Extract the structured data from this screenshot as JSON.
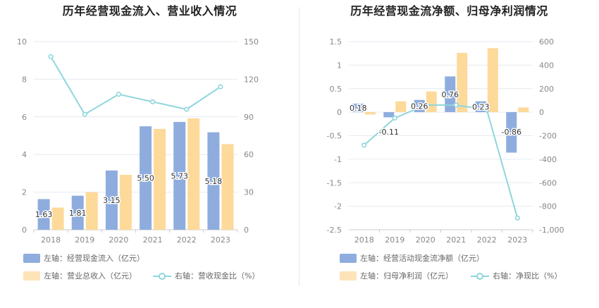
{
  "colors": {
    "bar1": "#8eadde",
    "bar2": "#fdd99a",
    "line": "#8ed6dc",
    "grid": "#e6e9f0",
    "axis_text": "#888888",
    "label_text": "#333333"
  },
  "left": {
    "title": "历年经营现金流入、营业收入情况",
    "legend": {
      "bar1": "左轴：经营现金流入（亿元）",
      "bar2": "左轴：营业总收入（亿元）",
      "line": "右轴：营收现金比（%）"
    }
  },
  "right": {
    "title": "历年经营现金流净额、归母净利润情况",
    "legend": {
      "bar1": "左轴：经营活动现金流净额（亿元）",
      "bar2": "左轴：归母净利润（亿元）",
      "line": "右轴：净现比（%）"
    }
  },
  "chart_data": [
    {
      "type": "bar",
      "title": "历年经营现金流入、营业收入情况",
      "categories": [
        "2018",
        "2019",
        "2020",
        "2021",
        "2022",
        "2023"
      ],
      "series": [
        {
          "name": "左轴：经营现金流入（亿元）",
          "axis": "left",
          "values": [
            1.63,
            1.81,
            3.15,
            5.5,
            5.73,
            5.18
          ],
          "labels": [
            "1.63",
            "1.81",
            "3.15",
            "5.50",
            "5.73",
            "5.18"
          ]
        },
        {
          "name": "左轴：营业总收入（亿元）",
          "axis": "left",
          "values": [
            1.18,
            2.0,
            2.92,
            5.36,
            5.92,
            4.55
          ]
        },
        {
          "name": "右轴：营收现金比（%）",
          "axis": "right",
          "type": "line",
          "values": [
            138,
            92,
            108,
            102,
            96,
            114
          ]
        }
      ],
      "y_left": {
        "min": 0,
        "max": 10,
        "ticks": [
          "0",
          "2",
          "4",
          "6",
          "8",
          "10"
        ]
      },
      "y_right": {
        "min": 0,
        "max": 150,
        "ticks": [
          "0",
          "30",
          "60",
          "90",
          "120",
          "150"
        ]
      },
      "grid": true
    },
    {
      "type": "bar",
      "title": "历年经营现金流净额、归母净利润情况",
      "categories": [
        "2018",
        "2019",
        "2020",
        "2021",
        "2022",
        "2023"
      ],
      "series": [
        {
          "name": "左轴：经营活动现金流净额（亿元）",
          "axis": "left",
          "values": [
            0.18,
            -0.11,
            0.26,
            0.76,
            0.23,
            -0.86
          ],
          "labels": [
            "0.18",
            "-0.11",
            "0.26",
            "0.76",
            "0.23",
            "-0.86"
          ]
        },
        {
          "name": "左轴：归母净利润（亿元）",
          "axis": "left",
          "values": [
            -0.05,
            0.23,
            0.44,
            1.26,
            1.36,
            0.1
          ]
        },
        {
          "name": "右轴：净现比（%）",
          "axis": "right",
          "type": "line",
          "values": [
            -280,
            -50,
            60,
            60,
            20,
            -900
          ]
        }
      ],
      "y_left": {
        "min": -2.5,
        "max": 1.5,
        "ticks": [
          "-2.5",
          "-2",
          "-1.5",
          "-1",
          "-0.5",
          "0",
          "0.5",
          "1",
          "1.5"
        ]
      },
      "y_right": {
        "min": -1000,
        "max": 600,
        "ticks": [
          "-1,000",
          "-800",
          "-600",
          "-400",
          "-200",
          "0",
          "200",
          "400",
          "600"
        ]
      },
      "grid": true
    }
  ]
}
